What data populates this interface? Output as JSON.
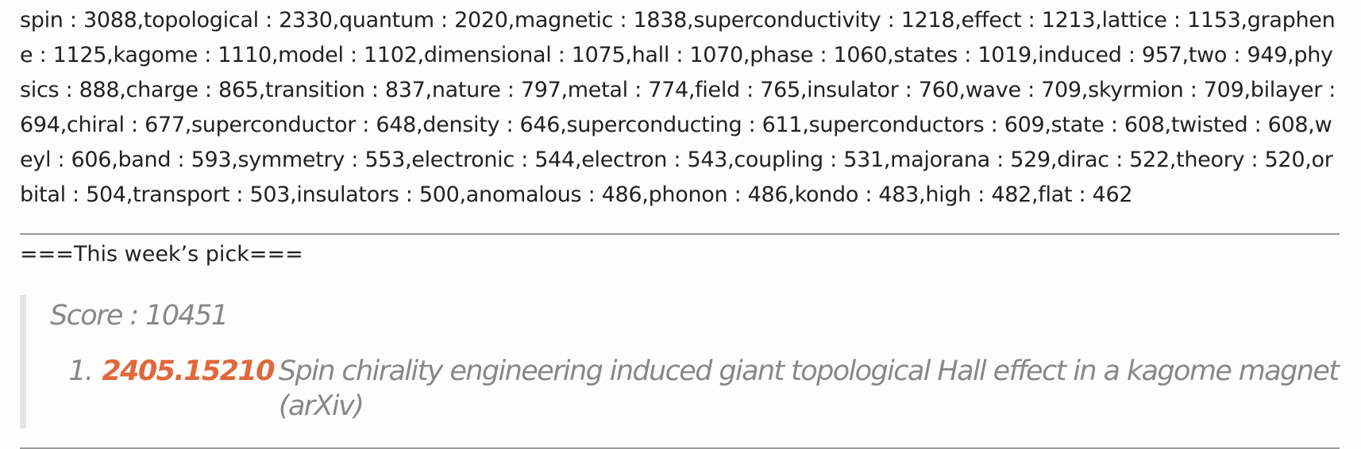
{
  "keywords_text": "spin : 3088,topological : 2330,quantum : 2020,magnetic : 1838,superconductivity : 1218,effect : 1213,lattice : 1153,graphene : 1125,kagome : 1110,model : 1102,dimensional : 1075,hall : 1070,phase : 1060,states : 1019,induced : 957,two : 949,physics : 888,charge : 865,transition : 837,nature : 797,metal : 774,field : 765,insulator : 760,wave : 709,skyrmion : 709,bilayer : 694,chiral : 677,superconductor : 648,density : 646,superconducting : 611,superconductors : 609,state : 608,twisted : 608,weyl : 606,band : 593,symmetry : 553,electronic : 544,electron : 543,coupling : 531,majorana : 529,dirac : 522,theory : 520,orbital : 504,transport : 503,insulators : 500,anomalous : 486,phonon : 486,kondo : 483,high : 482,flat : 462",
  "pick": {
    "header": "===This week’s pick===",
    "score_label": "Score : 10451",
    "items": [
      {
        "number": "1.",
        "arxiv_id": "2405.15210",
        "title": "Spin chirality engineering induced giant topological Hall effect in a kagome magnet (arXiv)"
      }
    ]
  },
  "colors": {
    "link": "#e0683b",
    "quote_text": "#888888",
    "quote_border": "#e5e5e5",
    "rule": "#9a9a9a"
  }
}
